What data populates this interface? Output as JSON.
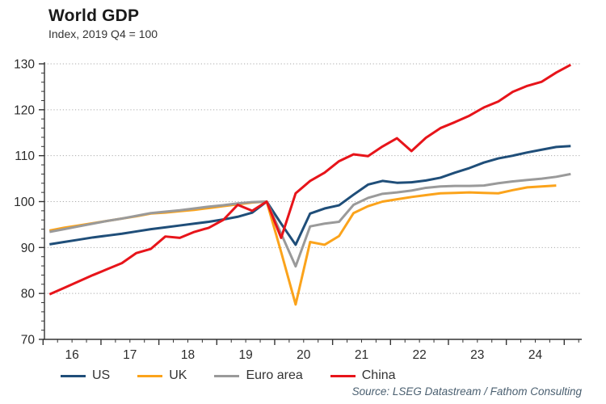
{
  "header": {
    "title": "World GDP",
    "subtitle": "Index, 2019 Q4 = 100"
  },
  "source": "Source: LSEG Datastream / Fathom Consulting",
  "chart_data": {
    "type": "line",
    "x_quarters": [
      "2016 Q1",
      "2016 Q2",
      "2016 Q3",
      "2016 Q4",
      "2017 Q1",
      "2017 Q2",
      "2017 Q3",
      "2017 Q4",
      "2018 Q1",
      "2018 Q2",
      "2018 Q3",
      "2018 Q4",
      "2019 Q1",
      "2019 Q2",
      "2019 Q3",
      "2019 Q4",
      "2020 Q1",
      "2020 Q2",
      "2020 Q3",
      "2020 Q4",
      "2021 Q1",
      "2021 Q2",
      "2021 Q3",
      "2021 Q4",
      "2022 Q1",
      "2022 Q2",
      "2022 Q3",
      "2022 Q4",
      "2023 Q1",
      "2023 Q2",
      "2023 Q3",
      "2023 Q4",
      "2024 Q1",
      "2024 Q2",
      "2024 Q3",
      "2024 Q4",
      "2025 Q1"
    ],
    "x_tick_labels": [
      "16",
      "17",
      "18",
      "19",
      "20",
      "21",
      "22",
      "23",
      "24"
    ],
    "y_ticks": [
      70,
      80,
      90,
      100,
      110,
      120,
      130
    ],
    "ylim": [
      70,
      130
    ],
    "grid": "dotted-horizontal",
    "legend_position": "bottom",
    "series": [
      {
        "name": "US",
        "color": "#1f4e79",
        "values": [
          90.7,
          91.2,
          91.7,
          92.2,
          92.6,
          93.0,
          93.5,
          94.0,
          94.4,
          94.8,
          95.2,
          95.6,
          96.1,
          96.7,
          97.6,
          100.0,
          95.2,
          90.6,
          97.4,
          98.5,
          99.2,
          101.5,
          103.7,
          104.5,
          104.1,
          104.2,
          104.6,
          105.2,
          106.3,
          107.3,
          108.5,
          109.4,
          110.0,
          110.7,
          111.3,
          111.9,
          112.1
        ]
      },
      {
        "name": "UK",
        "color": "#fba31b",
        "values": [
          93.7,
          94.3,
          94.8,
          95.3,
          95.8,
          96.3,
          96.8,
          97.4,
          97.6,
          97.9,
          98.2,
          98.6,
          99.0,
          99.4,
          99.8,
          100.0,
          89.0,
          77.6,
          91.2,
          90.6,
          92.5,
          97.5,
          99.0,
          100.0,
          100.5,
          101.0,
          101.4,
          101.8,
          101.9,
          102.0,
          101.9,
          101.8,
          102.5,
          103.1,
          103.3,
          103.5,
          null
        ]
      },
      {
        "name": "Euro area",
        "color": "#9a9a9a",
        "values": [
          93.4,
          94.0,
          94.6,
          95.2,
          95.8,
          96.3,
          96.9,
          97.5,
          97.8,
          98.1,
          98.5,
          98.9,
          99.2,
          99.6,
          99.9,
          100.0,
          93.0,
          85.9,
          94.6,
          95.2,
          95.6,
          99.3,
          100.8,
          101.7,
          102.0,
          102.4,
          103.0,
          103.3,
          103.4,
          103.4,
          103.5,
          104.0,
          104.4,
          104.7,
          105.0,
          105.4,
          106.0
        ]
      },
      {
        "name": "China",
        "color": "#e7141a",
        "values": [
          79.8,
          81.2,
          82.6,
          84.0,
          85.3,
          86.6,
          88.8,
          89.7,
          92.4,
          92.1,
          93.4,
          94.3,
          96.0,
          99.3,
          98.0,
          100.0,
          92.1,
          101.8,
          104.5,
          106.3,
          108.8,
          110.3,
          109.9,
          112.0,
          113.8,
          111.0,
          113.9,
          116.0,
          117.3,
          118.7,
          120.5,
          121.8,
          123.9,
          125.2,
          126.1,
          128.1,
          129.8
        ]
      }
    ]
  }
}
